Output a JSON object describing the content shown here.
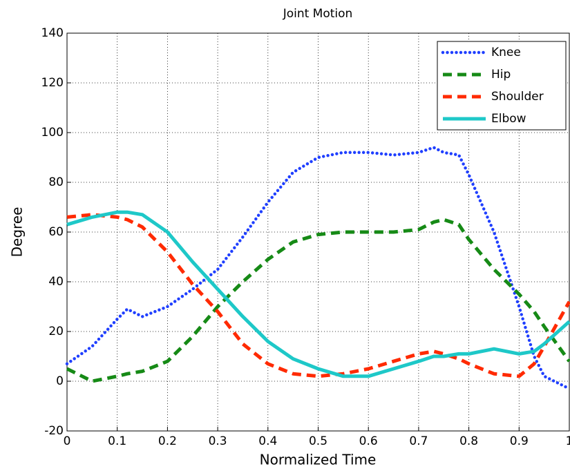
{
  "chart_data": {
    "type": "line",
    "title": "Joint Motion",
    "x_label": "Normalized Time",
    "y_label": "Degree",
    "x": [
      0,
      0.05,
      0.1,
      0.12,
      0.15,
      0.2,
      0.25,
      0.3,
      0.35,
      0.4,
      0.45,
      0.5,
      0.55,
      0.6,
      0.65,
      0.7,
      0.73,
      0.75,
      0.78,
      0.8,
      0.85,
      0.9,
      0.93,
      0.95,
      1
    ],
    "series": [
      {
        "name": "Knee",
        "color": "#1f3fff",
        "style": "dotted",
        "values": [
          7,
          14,
          25,
          29,
          26,
          30,
          37,
          45,
          58,
          72,
          84,
          90,
          92,
          92,
          91,
          92,
          94,
          92,
          91,
          83,
          60,
          30,
          10,
          2,
          -3
        ]
      },
      {
        "name": "Hip",
        "color": "#168a16",
        "style": "dashed",
        "values": [
          5,
          0,
          2,
          3,
          4,
          8,
          18,
          30,
          40,
          49,
          56,
          59,
          60,
          60,
          60,
          61,
          64,
          65,
          63,
          57,
          45,
          35,
          28,
          22,
          8
        ]
      },
      {
        "name": "Shoulder",
        "color": "#ff2a00",
        "style": "dashed",
        "values": [
          66,
          67,
          66,
          65,
          62,
          52,
          39,
          28,
          15,
          7,
          3,
          2,
          3,
          5,
          8,
          11,
          12,
          11,
          9,
          7,
          3,
          2,
          7,
          14,
          32
        ]
      },
      {
        "name": "Elbow",
        "color": "#1ec8c8",
        "style": "solid",
        "values": [
          63,
          66,
          68,
          68,
          67,
          60,
          48,
          37,
          26,
          16,
          9,
          5,
          2,
          2,
          5,
          8,
          10,
          10,
          11,
          11,
          13,
          11,
          12,
          15,
          24
        ]
      }
    ],
    "xlim": [
      0,
      1
    ],
    "xticks": [
      0,
      0.1,
      0.2,
      0.3,
      0.4,
      0.5,
      0.6,
      0.7,
      0.8,
      0.9,
      1
    ],
    "ylim": [
      -20,
      140
    ],
    "yticks": [
      -20,
      0,
      20,
      40,
      60,
      80,
      100,
      120,
      140
    ],
    "grid": true,
    "legend": "upper right"
  }
}
